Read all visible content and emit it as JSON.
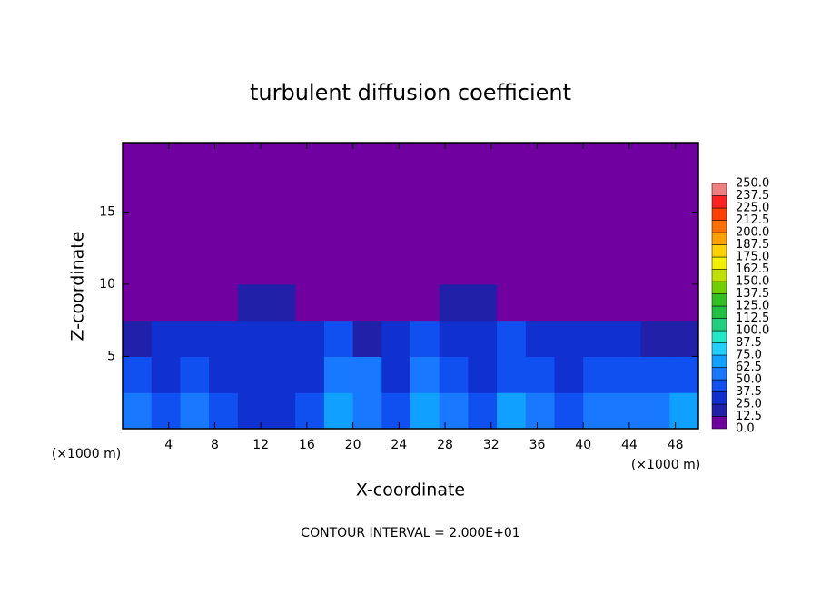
{
  "chart_data": {
    "type": "heatmap",
    "title": "turbulent diffusion coefficient",
    "xlabel": "X-coordinate",
    "ylabel": "Z-coordinate",
    "x_unit": "(×1000 m)",
    "y_unit": "(×1000 m)",
    "note": "CONTOUR INTERVAL = 2.000E+01",
    "xlim": [
      0,
      50
    ],
    "ylim": [
      0,
      19.8
    ],
    "xticks": [
      4,
      8,
      12,
      16,
      20,
      24,
      28,
      32,
      36,
      40,
      44,
      48
    ],
    "yticks": [
      5,
      10,
      15
    ],
    "xbins": [
      0,
      2.5,
      5,
      7.5,
      10,
      12.5,
      15,
      17.5,
      20,
      22.5,
      25,
      27.5,
      30,
      32.5,
      35,
      37.5,
      40,
      42.5,
      45,
      47.5,
      50
    ],
    "ybins": [
      0,
      2.5,
      5,
      7.5,
      10,
      12.5,
      15,
      17.5,
      19.8
    ],
    "values": [
      [
        55,
        45,
        60,
        40,
        35,
        35,
        40,
        70,
        60,
        45,
        65,
        55,
        45,
        70,
        60,
        45,
        50,
        55,
        60,
        65
      ],
      [
        40,
        35,
        40,
        30,
        30,
        30,
        35,
        60,
        55,
        30,
        50,
        40,
        35,
        45,
        40,
        35,
        45,
        40,
        45,
        40
      ],
      [
        20,
        30,
        35,
        35,
        30,
        30,
        35,
        40,
        20,
        30,
        40,
        35,
        35,
        40,
        30,
        35,
        30,
        25,
        20,
        15
      ],
      [
        0,
        0,
        0,
        10,
        15,
        15,
        5,
        0,
        0,
        0,
        10,
        15,
        15,
        10,
        5,
        0,
        0,
        0,
        0,
        0
      ],
      [
        0,
        0,
        0,
        0,
        0,
        0,
        0,
        0,
        0,
        0,
        0,
        0,
        0,
        0,
        0,
        0,
        0,
        0,
        0,
        0
      ],
      [
        0,
        0,
        0,
        0,
        0,
        0,
        0,
        0,
        0,
        0,
        0,
        0,
        0,
        0,
        0,
        0,
        0,
        0,
        0,
        0
      ],
      [
        0,
        0,
        0,
        0,
        0,
        0,
        0,
        0,
        0,
        0,
        0,
        0,
        0,
        0,
        0,
        0,
        0,
        0,
        0,
        0
      ],
      [
        0,
        0,
        0,
        0,
        0,
        0,
        0,
        0,
        0,
        0,
        0,
        0,
        0,
        0,
        0,
        0,
        0,
        0,
        0,
        0
      ]
    ],
    "levels": [
      {
        "value": 0,
        "label": "0.0"
      },
      12.5,
      {
        "value": 25,
        "label": "25.0"
      },
      37.5,
      {
        "value": 50,
        "label": "50.0"
      },
      62.5,
      {
        "value": 75,
        "label": "75.0"
      },
      87.5,
      {
        "value": 100,
        "label": "100.0"
      },
      112.5,
      {
        "value": 125,
        "label": "125.0"
      },
      137.5,
      {
        "value": 150,
        "label": "150.0"
      },
      162.5,
      {
        "value": 175,
        "label": "175.0"
      },
      187.5,
      {
        "value": 200,
        "label": "200.0"
      },
      212.5,
      {
        "value": 225,
        "label": "225.0"
      },
      237.5,
      {
        "value": 250,
        "label": "250.0"
      }
    ],
    "colors": [
      "#7000a0",
      "#2020a8",
      "#1030d0",
      "#1050f0",
      "#1878ff",
      "#10a0ff",
      "#20d0ff",
      "#20e8c8",
      "#20d080",
      "#20c040",
      "#30c020",
      "#70d000",
      "#c0e000",
      "#f0f000",
      "#ffd000",
      "#ffa000",
      "#ff7000",
      "#ff4000",
      "#ff2020",
      "#f08080"
    ]
  }
}
